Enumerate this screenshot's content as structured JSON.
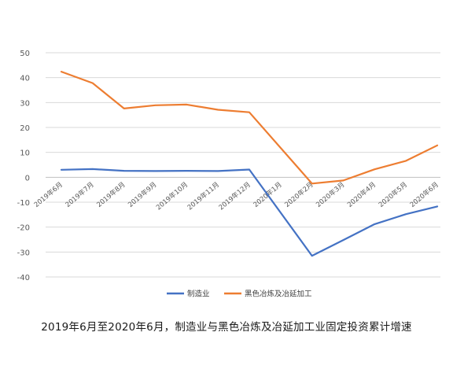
{
  "caption": "2019年6月至2020年6月，制造业与黑色冶炼及冶延加工业固定投资累计增速",
  "colors": {
    "series_blue": "#4472C4",
    "series_orange": "#ED7D31",
    "grid": "#d9d9d9",
    "axis_text": "#595959"
  },
  "chart_data": {
    "type": "line",
    "categories": [
      "2019年6月",
      "2019年7月",
      "2019年8月",
      "2019年9月",
      "2019年10月",
      "2019年11月",
      "2019年12月",
      "2020年1月",
      "2020年2月",
      "2020年3月",
      "2020年4月",
      "2020年5月",
      "2020年6月"
    ],
    "series": [
      {
        "name": "制造业",
        "color": "#4472C4",
        "values": [
          3.0,
          3.3,
          2.6,
          2.5,
          2.6,
          2.5,
          3.1,
          null,
          -31.5,
          -25.2,
          -18.8,
          -14.8,
          -11.7
        ]
      },
      {
        "name": "黑色冶炼及冶延加工",
        "color": "#ED7D31",
        "values": [
          42.4,
          37.8,
          27.6,
          28.9,
          29.2,
          27.1,
          26.1,
          null,
          -2.5,
          -1.3,
          3.2,
          6.6,
          12.8
        ]
      }
    ],
    "yticks": [
      50,
      40,
      30,
      20,
      10,
      0,
      -10,
      -20,
      -30,
      -40
    ],
    "ylim": [
      -40,
      50
    ],
    "grid": true,
    "legend_position": "bottom",
    "title": "",
    "xlabel": "",
    "ylabel": ""
  }
}
